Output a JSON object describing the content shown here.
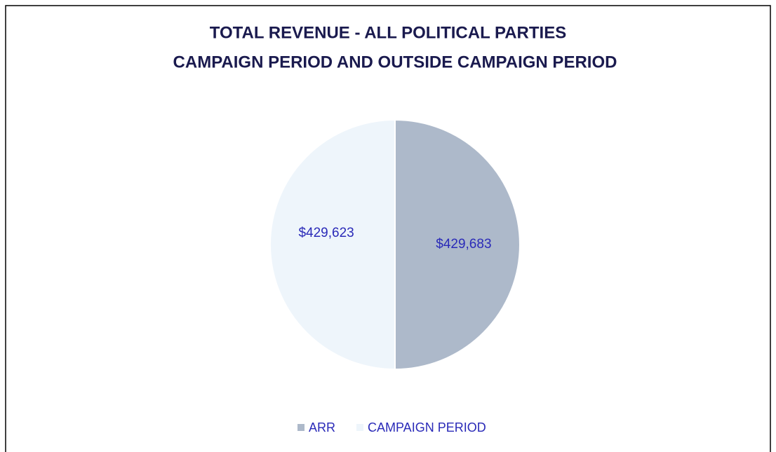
{
  "chart_data": {
    "type": "pie",
    "title": [
      "TOTAL REVENUE - ALL POLITICAL PARTIES",
      "CAMPAIGN PERIOD AND OUTSIDE CAMPAIGN PERIOD"
    ],
    "categories": [
      "ARR",
      "CAMPAIGN PERIOD"
    ],
    "values": [
      429683,
      429623
    ],
    "value_labels": [
      "$429,683",
      "$429,623"
    ],
    "colors": [
      "#adb9ca",
      "#eef5fb"
    ],
    "legend": "bottom"
  }
}
